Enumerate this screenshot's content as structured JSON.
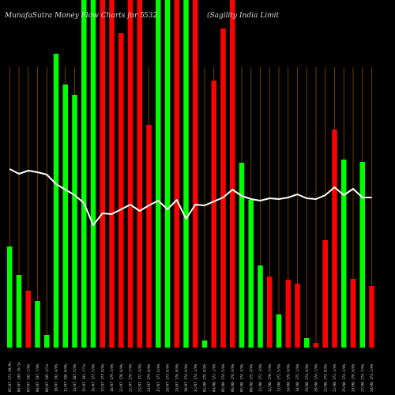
{
  "chart_data": {
    "type": "bar",
    "title_left": "MunafaSutra  Money Flow  Charts for 5",
    "title_code": "532",
    "title_right": "(Sagility India  Limit",
    "colors": {
      "up": "#00ff00",
      "down": "#ff0000",
      "line": "#ffffff",
      "grid": "#8a4a00",
      "background": "#000000"
    },
    "categories": [
      "05/07 271.99/9%",
      "06/07 199.35/1%",
      "07/07 192.1/0%",
      "08/07 197.7/0%",
      "09/07 195.2/1%",
      "10/07 192.4/0%",
      "11/07 196.0/0%",
      "14/07 187.5/0%",
      "15/07 181.7/1%",
      "16/07 177.5/0%",
      "17/07 177.0/0%",
      "18/07 179.3/0%",
      "21/07 170.0/0%",
      "22/07 176.7/0%",
      "23/07 172.4/0%",
      "24/07 179.0/0%",
      "25/07 177.6/0%",
      "28/07 173.6/0%",
      "29/07 176.0/0%",
      "30/07 174.6/0%",
      "31/07 174.1/0%",
      "01/08 175.0/0%",
      "04/08 172.1/0%",
      "05/08 174.5/0%",
      "06/08 176.9/0%",
      "07/08 174.3/0%",
      "08/08 175.4/0%",
      "11/08 172.3/0%",
      "12/08 170.7/0%",
      "13/08 172.5/0%",
      "14/08 176.9/0%",
      "18/08 175.1/0%",
      "19/08 174.6/0%",
      "20/08 174.1/0%",
      "21/08 175.0/0%",
      "22/08 172.1/0%",
      "25/08 174.2/0%",
      "26/08 176.8/0%",
      "27/08 174.7/0%",
      "28/08 173.2/0%"
    ],
    "values": [
      128,
      92,
      72,
      59,
      16,
      372,
      333,
      320,
      440,
      440,
      440,
      440,
      398,
      440,
      440,
      282,
      440,
      440,
      440,
      440,
      440,
      9,
      338,
      404,
      440,
      234,
      187,
      104,
      90,
      42,
      86,
      81,
      12,
      6,
      136,
      276,
      238,
      87,
      235,
      78
    ],
    "directions": [
      "up",
      "up",
      "down",
      "up",
      "up",
      "up",
      "up",
      "up",
      "up",
      "up",
      "down",
      "down",
      "down",
      "down",
      "down",
      "down",
      "up",
      "up",
      "down",
      "up",
      "down",
      "up",
      "down",
      "down",
      "down",
      "up",
      "up",
      "up",
      "down",
      "up",
      "down",
      "down",
      "up",
      "down",
      "down",
      "down",
      "up",
      "down",
      "up",
      "down"
    ],
    "line_values": [
      226,
      220,
      224,
      222,
      219,
      207,
      200,
      193,
      183,
      155,
      170,
      169,
      175,
      181,
      173,
      180,
      186,
      175,
      187,
      163,
      181,
      180,
      185,
      190,
      200,
      192,
      188,
      186,
      189,
      188,
      190,
      194,
      189,
      188,
      193,
      203,
      193,
      201,
      190,
      190
    ],
    "ylim": [
      0,
      440
    ]
  }
}
